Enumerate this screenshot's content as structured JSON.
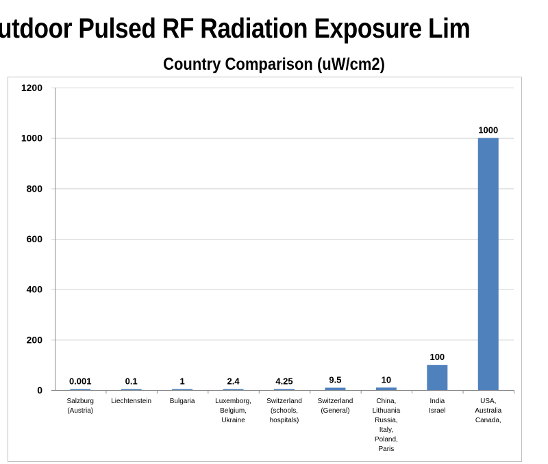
{
  "chart_data": {
    "type": "bar",
    "title": "utdoor Pulsed RF Radiation Exposure Lim",
    "subtitle": "Country Comparison (uW/cm2)",
    "xlabel": "",
    "ylabel": "",
    "ylim": [
      0,
      1200
    ],
    "yticks": [
      0,
      200,
      400,
      600,
      800,
      1000,
      1200
    ],
    "grid": true,
    "categories": [
      [
        "Salzburg",
        "(Austria)"
      ],
      [
        "Liechtenstein"
      ],
      [
        "Bulgaria"
      ],
      [
        "Luxemborg,",
        "Belgium,",
        "Ukraine"
      ],
      [
        "Switzerland",
        "(schools,",
        "hospitals)"
      ],
      [
        "Switzerland",
        "(General)"
      ],
      [
        "China,",
        "Lithuania",
        "Russia,",
        "Italy,",
        "Poland,",
        "Paris"
      ],
      [
        "India",
        "Israel"
      ],
      [
        "USA,",
        "Australia",
        "Canada,"
      ]
    ],
    "values": [
      0.001,
      0.1,
      1,
      2.4,
      4.25,
      9.5,
      10,
      100,
      1000
    ],
    "data_labels": [
      "0.001",
      "0.1",
      "1",
      "2.4",
      "4.25",
      "9.5",
      "10",
      "100",
      "1000"
    ],
    "bar_color": "#4f81bd"
  }
}
